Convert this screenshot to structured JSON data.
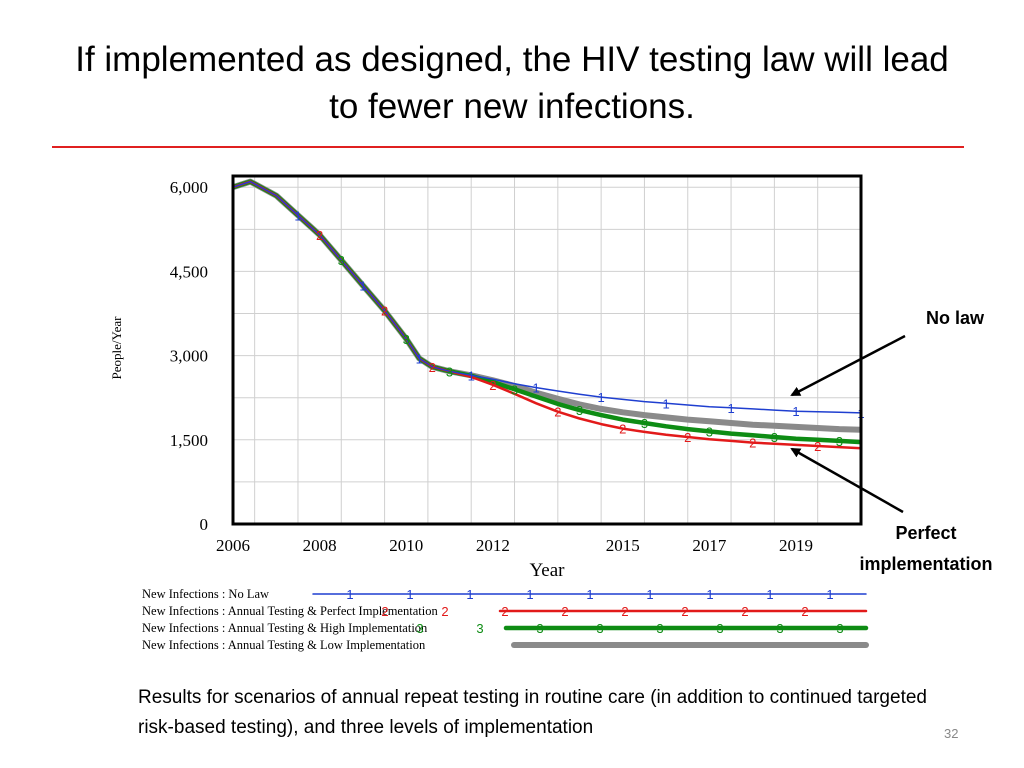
{
  "slide": {
    "title": "If implemented as designed, the HIV testing law will lead to fewer new infections.",
    "caption": "Results for scenarios of annual repeat testing in routine care (in addition to continued targeted risk-based testing), and three levels of implementation",
    "slide_number": "32",
    "title_rule_color": "#e02020"
  },
  "callouts": {
    "no_law": "No law",
    "perfect_line1": "Perfect",
    "perfect_line2": "implementation"
  },
  "chart_data": {
    "type": "line",
    "xlabel": "Year",
    "ylabel": "People/Year",
    "xlim": [
      2006,
      2020.5
    ],
    "ylim": [
      0,
      6200
    ],
    "x_ticks": [
      2006,
      2008,
      2010,
      2012,
      2015,
      2017,
      2019
    ],
    "x_tick_labels": [
      "2006",
      "2008",
      "2010",
      "2012",
      "2015",
      "2017",
      "2019"
    ],
    "y_ticks": [
      0,
      1500,
      3000,
      4500,
      6000
    ],
    "y_tick_labels": [
      "0",
      "1,500",
      "3,000",
      "4,500",
      "6,000"
    ],
    "grid": true,
    "legend_position": "below",
    "series": [
      {
        "name": "New Infections : No Law",
        "marker": "1",
        "color": "#1f3fd0",
        "x": [
          2006,
          2006.4,
          2007,
          2007.5,
          2008,
          2008.5,
          2009,
          2009.5,
          2010,
          2010.3,
          2010.6,
          2011,
          2011.5,
          2012,
          2012.5,
          2013,
          2013.5,
          2014,
          2014.5,
          2015,
          2015.5,
          2016,
          2016.5,
          2017,
          2017.5,
          2018,
          2018.5,
          2019,
          2019.5,
          2020,
          2020.5
        ],
        "y": [
          6000,
          6100,
          5850,
          5500,
          5150,
          4700,
          4250,
          3800,
          3300,
          2950,
          2800,
          2720,
          2650,
          2580,
          2500,
          2430,
          2370,
          2310,
          2260,
          2220,
          2180,
          2150,
          2120,
          2090,
          2070,
          2050,
          2030,
          2010,
          2000,
          1990,
          1980
        ]
      },
      {
        "name": "New Infections : Annual Testing & Perfect Implementation",
        "marker": "2",
        "color": "#e21a1a",
        "x": [
          2006,
          2006.4,
          2007,
          2007.5,
          2008,
          2008.5,
          2009,
          2009.5,
          2010,
          2010.3,
          2010.6,
          2011,
          2011.5,
          2012,
          2012.5,
          2013,
          2013.5,
          2014,
          2014.5,
          2015,
          2015.5,
          2016,
          2016.5,
          2017,
          2017.5,
          2018,
          2018.5,
          2019,
          2019.5,
          2020,
          2020.5
        ],
        "y": [
          6000,
          6100,
          5850,
          5500,
          5150,
          4700,
          4250,
          3800,
          3300,
          2950,
          2800,
          2720,
          2620,
          2480,
          2320,
          2150,
          2000,
          1880,
          1780,
          1700,
          1640,
          1590,
          1550,
          1510,
          1480,
          1450,
          1430,
          1410,
          1390,
          1370,
          1350
        ]
      },
      {
        "name": "New Infections : Annual Testing & High Implementation",
        "marker": "3",
        "color": "#0e8c14",
        "x": [
          2006,
          2006.4,
          2007,
          2007.5,
          2008,
          2008.5,
          2009,
          2009.5,
          2010,
          2010.3,
          2010.6,
          2011,
          2011.5,
          2012,
          2012.5,
          2013,
          2013.5,
          2014,
          2014.5,
          2015,
          2015.5,
          2016,
          2016.5,
          2017,
          2017.5,
          2018,
          2018.5,
          2019,
          2019.5,
          2020,
          2020.5
        ],
        "y": [
          6000,
          6100,
          5850,
          5500,
          5150,
          4700,
          4250,
          3800,
          3300,
          2950,
          2800,
          2720,
          2640,
          2530,
          2400,
          2270,
          2140,
          2030,
          1940,
          1860,
          1800,
          1740,
          1690,
          1650,
          1610,
          1580,
          1550,
          1520,
          1500,
          1480,
          1460
        ]
      },
      {
        "name": "New Infections : Annual Testing & Low Implementation",
        "marker": "4",
        "color": "#8a8a8a",
        "x": [
          2006,
          2006.4,
          2007,
          2007.5,
          2008,
          2008.5,
          2009,
          2009.5,
          2010,
          2010.3,
          2010.6,
          2011,
          2011.5,
          2012,
          2012.5,
          2013,
          2013.5,
          2014,
          2014.5,
          2015,
          2015.5,
          2016,
          2016.5,
          2017,
          2017.5,
          2018,
          2018.5,
          2019,
          2019.5,
          2020,
          2020.5
        ],
        "y": [
          6000,
          6100,
          5850,
          5500,
          5150,
          4700,
          4250,
          3800,
          3300,
          2950,
          2800,
          2720,
          2650,
          2560,
          2460,
          2340,
          2230,
          2130,
          2050,
          1990,
          1940,
          1900,
          1860,
          1830,
          1800,
          1770,
          1750,
          1730,
          1710,
          1690,
          1680
        ]
      }
    ]
  }
}
